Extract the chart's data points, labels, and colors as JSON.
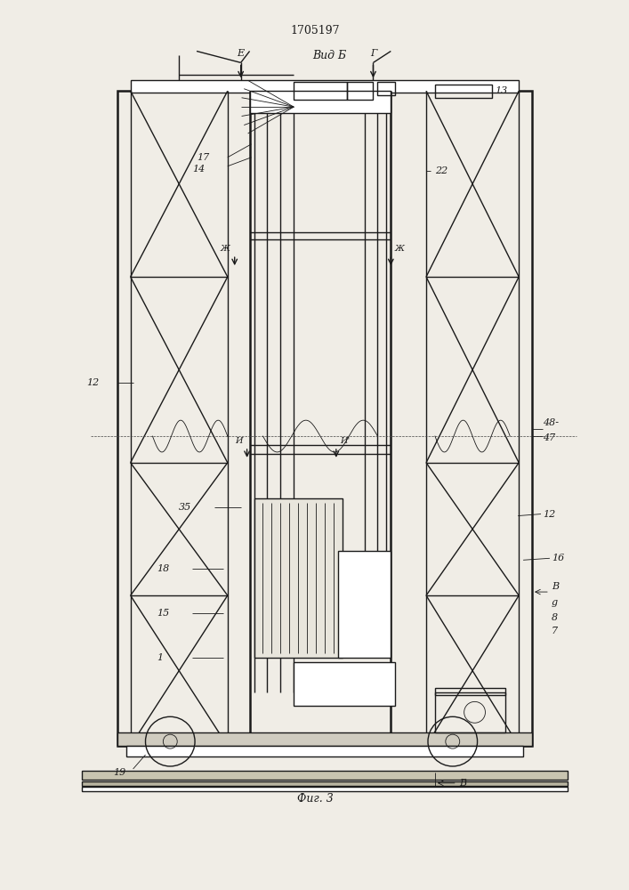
{
  "title": "1705197",
  "view_label": "Вид Б",
  "fig_label": "Фиг. 3",
  "bg_color": "#f0ede6",
  "line_color": "#1a1a1a",
  "lw": 1.0,
  "tlw": 0.6,
  "thk": 1.8
}
